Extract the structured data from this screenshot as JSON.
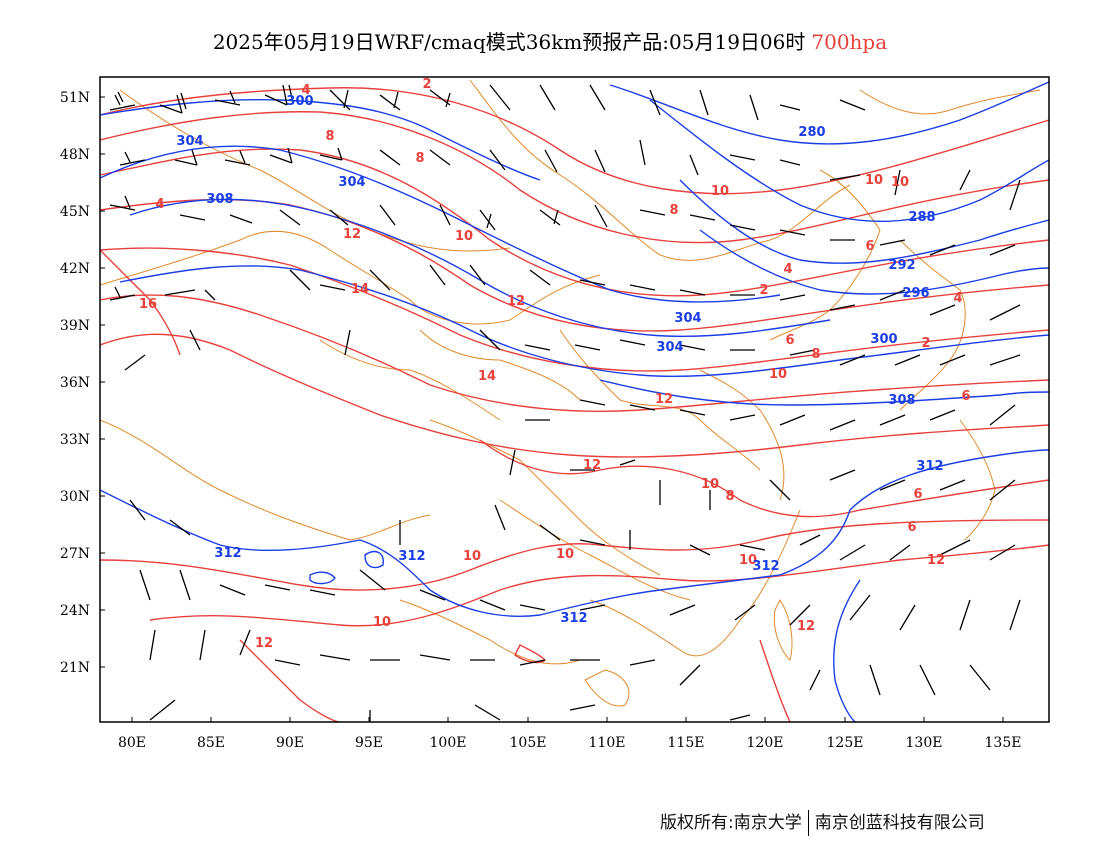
{
  "title": {
    "main": "2025年05月19日WRF/cmaq模式36km预报产品:05月19日06时",
    "level": "700hpa"
  },
  "colors": {
    "temperature": "#e8413c",
    "height": "#1a3ee6",
    "border": "#e08a2c",
    "wind": "#000000"
  },
  "axes": {
    "lat_labels": [
      "51N",
      "48N",
      "45N",
      "42N",
      "39N",
      "36N",
      "33N",
      "30N",
      "27N",
      "24N",
      "21N"
    ],
    "lon_labels": [
      "80E",
      "85E",
      "90E",
      "95E",
      "100E",
      "105E",
      "110E",
      "115E",
      "120E",
      "125E",
      "130E",
      "135E"
    ]
  },
  "height_labels": [
    "300",
    "304",
    "304",
    "308",
    "280",
    "288",
    "292",
    "296",
    "300",
    "304",
    "304",
    "308",
    "312",
    "312",
    "312",
    "312",
    "312"
  ],
  "temperature_labels": [
    "4",
    "2",
    "8",
    "8",
    "4",
    "12",
    "10",
    "10",
    "8",
    "10",
    "14",
    "16",
    "12",
    "6",
    "2",
    "4",
    "6",
    "8",
    "10",
    "12",
    "14",
    "12",
    "10",
    "10",
    "10",
    "8",
    "6",
    "6",
    "6",
    "12",
    "10",
    "12",
    "10",
    "10",
    "12",
    "4",
    "2"
  ],
  "footer": {
    "left": "版权所有:南京大学",
    "right": "南京创蓝科技有限公司"
  }
}
